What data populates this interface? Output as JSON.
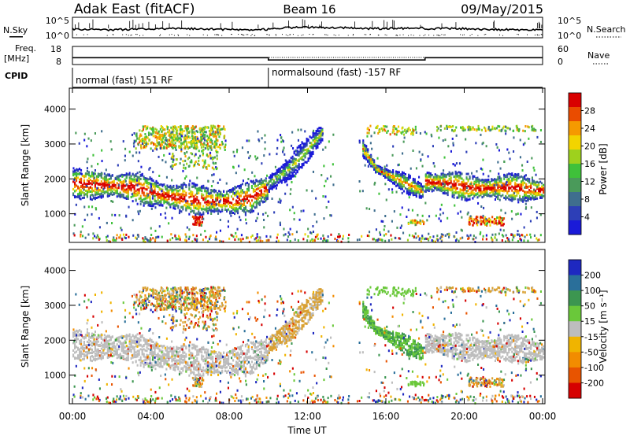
{
  "header": {
    "station": "Adak East (fitACF)",
    "beam": "Beam 16",
    "date": "09/May/2015"
  },
  "top_panels": {
    "nsky_label": "N.Sky",
    "nsky_ticks": [
      "10^5",
      "10^0"
    ],
    "nsearch_label": "N.Search",
    "nsearch_ticks": [
      "10^5",
      "10^0"
    ],
    "freq_label": "Freq.",
    "freq_unit": "[MHz]",
    "freq_ticks": [
      "18",
      "8"
    ],
    "nave_label": "Nave",
    "nave_ticks": [
      "60",
      "0"
    ],
    "cpid_label": "CPID",
    "cpid_segments": [
      {
        "label": "normal (fast) 151 RF",
        "start_hour": 0,
        "end_hour": 10
      },
      {
        "label": "normalsound (fast) -157 RF",
        "start_hour": 10,
        "end_hour": 24
      }
    ],
    "freq_segments_mhz": [
      {
        "start_hour": 0,
        "end_hour": 10,
        "value": 11.5
      },
      {
        "start_hour": 10,
        "end_hour": 18,
        "value": 10.2
      },
      {
        "start_hour": 18,
        "end_hour": 24,
        "value": 11.5
      }
    ]
  },
  "chart_data": [
    {
      "type": "heatmap",
      "name": "power",
      "ylabel": "Slant Range [km]",
      "yticks": [
        1000,
        2000,
        3000,
        4000
      ],
      "ylim": [
        180,
        4600
      ],
      "xlim_hours": [
        0,
        24
      ],
      "colorbar": {
        "label": "Power [dB]",
        "ticks": [
          "4",
          "8",
          "12",
          "16",
          "20",
          "24",
          "28"
        ],
        "colors": [
          "#1a1ad8",
          "#2d3fb7",
          "#3f6e8e",
          "#4a9a5a",
          "#3fc13a",
          "#9ed11d",
          "#f2d400",
          "#f59a00",
          "#ea4c00",
          "#d90000"
        ]
      },
      "bands": [
        {
          "x": [
            0,
            1,
            2,
            3,
            4,
            5,
            6,
            7,
            8,
            9,
            10
          ],
          "y": [
            1900,
            1880,
            1840,
            1800,
            1650,
            1520,
            1450,
            1400,
            1380,
            1480,
            1800
          ],
          "width": 380
        },
        {
          "x": [
            10,
            11,
            12,
            12.8
          ],
          "y": [
            1900,
            2300,
            2900,
            3400
          ],
          "width": 300
        },
        {
          "x": [
            14.8,
            15.5,
            16.3,
            17,
            17.9
          ],
          "y": [
            2900,
            2300,
            2100,
            1900,
            1650
          ],
          "width": 200
        },
        {
          "x": [
            18,
            19,
            20,
            21,
            22,
            23,
            24
          ],
          "y": [
            1950,
            1900,
            1800,
            1750,
            1800,
            1750,
            1700
          ],
          "width": 330
        }
      ]
    },
    {
      "type": "heatmap",
      "name": "velocity",
      "xlabel": "Time UT",
      "ylabel": "Slant Range [km]",
      "yticks": [
        1000,
        2000,
        3000,
        4000
      ],
      "ylim": [
        180,
        4600
      ],
      "xlim_hours": [
        0,
        24
      ],
      "xticks": [
        "00:00",
        "04:00",
        "08:00",
        "12:00",
        "16:00",
        "20:00",
        "00:00"
      ],
      "colorbar": {
        "label": "Velocity [m s⁻¹]",
        "ticks": [
          "200",
          "100",
          "50",
          "15",
          "-15",
          "-50",
          "-100",
          "-200"
        ],
        "colors": [
          "#1e28c0",
          "#2a6f9a",
          "#3c9650",
          "#6ac83a",
          "#bdbdbd",
          "#f0b400",
          "#f28c00",
          "#e85400",
          "#d60000"
        ]
      },
      "ground_scatter_color": "#bdbdbd",
      "late_band_color": "#d9a030"
    }
  ]
}
